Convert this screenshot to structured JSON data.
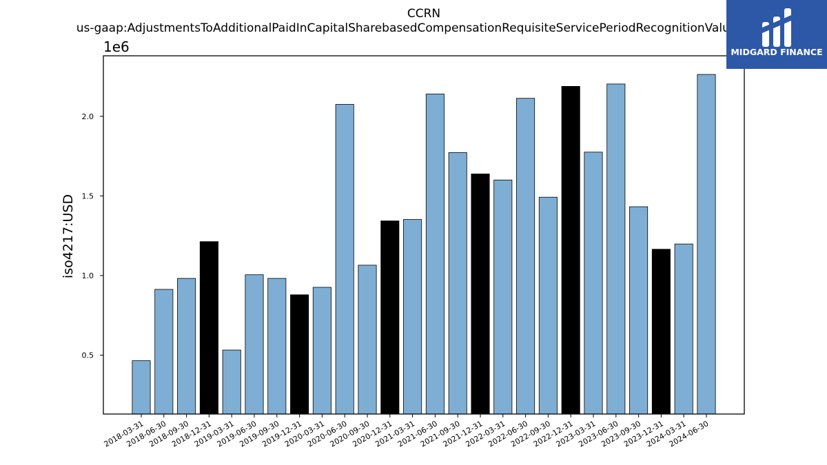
{
  "chart_data": {
    "type": "bar",
    "title": "CCRN",
    "subtitle": "us-gaap:AdjustmentsToAdditionalPaidInCapitalSharebasedCompensationRequisiteServicePeriodRecognitionValue",
    "xlabel": "",
    "ylabel": "iso4217:USD",
    "y_offset_label": "1e6",
    "ylim": [
      0.13,
      2.38
    ],
    "yticks": [
      0.5,
      1.0,
      1.5,
      2.0
    ],
    "ytick_labels": [
      "0.5",
      "1.0",
      "1.5",
      "2.0"
    ],
    "grid": false,
    "categories": [
      "2018-03-31",
      "2018-06-30",
      "2018-09-30",
      "2018-12-31",
      "2019-03-31",
      "2019-06-30",
      "2019-09-30",
      "2019-12-31",
      "2020-03-31",
      "2020-06-30",
      "2020-09-30",
      "2020-12-31",
      "2021-03-31",
      "2021-06-30",
      "2021-09-30",
      "2021-12-31",
      "2022-03-31",
      "2022-06-30",
      "2022-09-30",
      "2022-12-31",
      "2023-03-31",
      "2023-06-30",
      "2023-09-30",
      "2023-12-31",
      "2024-03-31",
      "2024-06-30"
    ],
    "values": [
      0.465,
      0.913,
      0.982,
      1.213,
      0.532,
      1.005,
      0.982,
      0.879,
      0.926,
      2.075,
      1.065,
      1.343,
      1.352,
      2.14,
      1.772,
      1.638,
      1.6,
      2.113,
      1.492,
      2.188,
      1.775,
      2.203,
      1.432,
      1.165,
      1.198,
      2.263
    ],
    "highlight": [
      false,
      false,
      false,
      true,
      false,
      false,
      false,
      true,
      false,
      false,
      false,
      true,
      false,
      false,
      false,
      true,
      false,
      false,
      false,
      true,
      false,
      false,
      false,
      true,
      false,
      false
    ],
    "colors": {
      "bar": "#7eaed3",
      "highlight": "#000000",
      "edge": "#000000"
    }
  },
  "logo": {
    "text": "MIDGARD FINANCE",
    "background": "#2d58a8"
  }
}
